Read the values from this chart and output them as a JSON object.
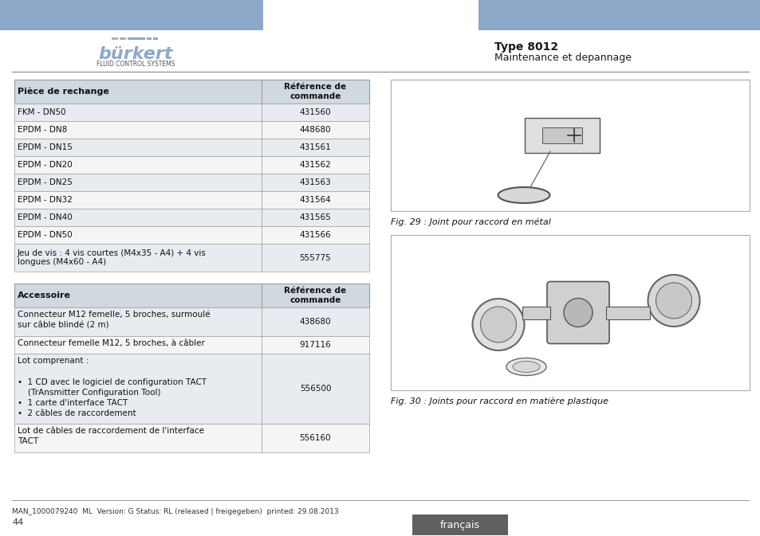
{
  "header_bar_color": "#8da8c8",
  "burkert_text": "bürkert",
  "burkert_subtitle": "FLUID CONTROL SYSTEMS",
  "type_title": "Type 8012",
  "type_subtitle": "Maintenance et depannage",
  "footer_text": "MAN_1000079240  ML  Version: G Status: RL (released | freigegeben)  printed: 29.08.2013",
  "footer_page": "44",
  "footer_lang": "français",
  "footer_lang_bg": "#606060",
  "table1_header_col1": "Pièce de rechange",
  "table1_header_col2": "Référence de\ncommande",
  "table1_rows": [
    [
      "FKM - DN50",
      "431560"
    ],
    [
      "EPDM - DN8",
      "448680"
    ],
    [
      "EPDM - DN15",
      "431561"
    ],
    [
      "EPDM - DN20",
      "431562"
    ],
    [
      "EPDM - DN25",
      "431563"
    ],
    [
      "EPDM - DN32",
      "431564"
    ],
    [
      "EPDM - DN40",
      "431565"
    ],
    [
      "EPDM - DN50",
      "431566"
    ],
    [
      "Jeu de vis : 4 vis courtes (M4x35 - A4) + 4 vis\nlongues (M4x60 - A4)",
      "555775"
    ]
  ],
  "table2_header_col1": "Accessoire",
  "table2_header_col2": "Référence de\ncommande",
  "table2_rows": [
    [
      "Connecteur M12 femelle, 5 broches, surmoulé\nsur câble blindé (2 m)",
      "438680"
    ],
    [
      "Connecteur femelle M12, 5 broches, à câbler",
      "917116"
    ],
    [
      "Lot comprenant :\n\n•  1 CD avec le logiciel de configuration TACT\n    (TrAnsmitter Configuration Tool)\n•  1 carte d'interface TACT\n•  2 câbles de raccordement",
      "556500"
    ],
    [
      "Lot de câbles de raccordement de l'interface\nTACT",
      "556160"
    ]
  ],
  "fig29_caption": "Fig. 29 : Joint pour raccord en métal",
  "fig30_caption": "Fig. 30 : Joints pour raccord en matière plastique",
  "table_bg_header": "#d0d8e0",
  "table_bg_row_even": "#e8ecf0",
  "table_bg_row_odd": "#f5f5f5",
  "table_border_color": "#a0a0a0",
  "text_color": "#1a1a1a"
}
